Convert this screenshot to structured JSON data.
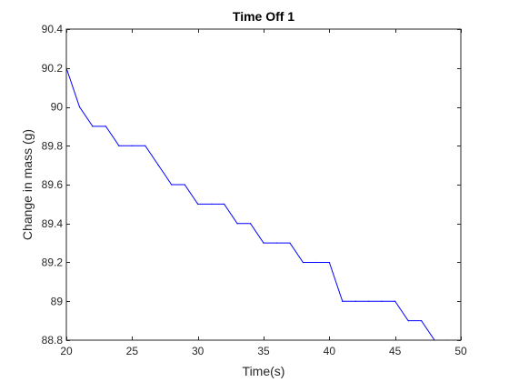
{
  "chart_data": {
    "type": "line",
    "title": "Time Off 1",
    "xlabel": "Time(s)",
    "ylabel": "Change in mass (g)",
    "xlim": [
      20,
      50
    ],
    "ylim": [
      88.8,
      90.4
    ],
    "xticks": [
      20,
      25,
      30,
      35,
      40,
      45,
      50
    ],
    "yticks": [
      88.8,
      89,
      89.2,
      89.4,
      89.6,
      89.8,
      90,
      90.2,
      90.4
    ],
    "xtick_labels": [
      "20",
      "25",
      "30",
      "35",
      "40",
      "45",
      "50"
    ],
    "ytick_labels": [
      "88.8",
      "89",
      "89.2",
      "89.4",
      "89.6",
      "89.8",
      "90",
      "90.2",
      "90.4"
    ],
    "grid": false,
    "series": [
      {
        "color": "#0000ff",
        "x": [
          20,
          21,
          22,
          23,
          24,
          25,
          26,
          27,
          28,
          29,
          30,
          31,
          32,
          33,
          34,
          35,
          36,
          37,
          38,
          39,
          40,
          41,
          42,
          43,
          44,
          45,
          46,
          47,
          48,
          49
        ],
        "y": [
          90.2,
          90.0,
          89.9,
          89.9,
          89.8,
          89.8,
          89.8,
          89.7,
          89.6,
          89.6,
          89.5,
          89.5,
          89.5,
          89.4,
          89.4,
          89.3,
          89.3,
          89.3,
          89.2,
          89.2,
          89.2,
          89.0,
          89.0,
          89.0,
          89.0,
          89.0,
          88.9,
          88.9,
          88.8,
          88.8
        ]
      }
    ]
  }
}
